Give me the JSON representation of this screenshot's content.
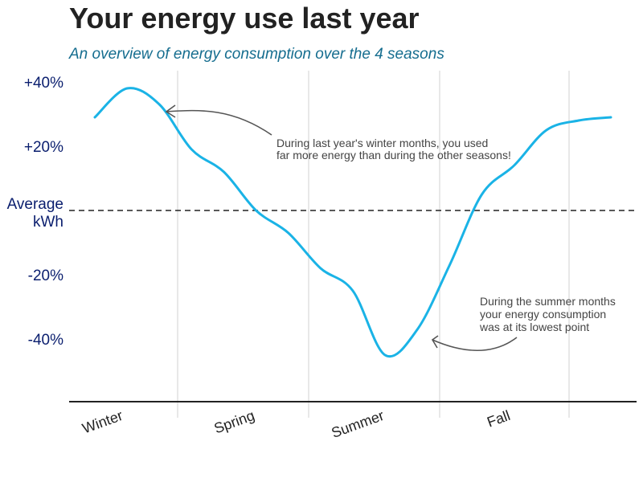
{
  "chart_data": {
    "type": "line",
    "title": "Your energy use last year",
    "subtitle": "An overview of energy consumption over the 4 seasons",
    "xlabel": "",
    "ylabel": "",
    "categories": [
      "Winter",
      "Spring",
      "Summer",
      "Fall"
    ],
    "y_tick_labels": [
      "+40%",
      "+20%",
      "Average kWh",
      "-20%",
      "-40%"
    ],
    "y_tick_values": [
      40,
      20,
      0,
      -20,
      -40
    ],
    "ylim": [
      -60,
      41
    ],
    "reference_line": {
      "label": "Average kWh",
      "value": 0,
      "style": "dashed"
    },
    "grid": "vertical lines between seasons",
    "series": [
      {
        "color": "#1ab3e6",
        "x": [
          0,
          0.25,
          0.5,
          0.75,
          1.0,
          1.25,
          1.5,
          1.75,
          2.0,
          2.25,
          2.5,
          2.75,
          3.0,
          3.25,
          3.5,
          3.75,
          4.0
        ],
        "y": [
          29,
          38,
          33,
          19,
          12,
          0,
          -7,
          -18,
          -25,
          -45,
          -37,
          -17,
          5,
          14,
          25,
          28,
          29
        ]
      }
    ],
    "annotations": [
      {
        "lines": [
          "During last year's winter months, you used",
          "far more energy than during the other seasons!"
        ]
      },
      {
        "lines": [
          "During the summer months",
          "your energy consumption",
          "was at its lowest point"
        ]
      }
    ],
    "colors": {
      "line": "#1ab3e6",
      "title": "#222222",
      "subtitle": "#156d8f",
      "ytick": "#0a1e6e",
      "annotation": "#444444"
    }
  }
}
